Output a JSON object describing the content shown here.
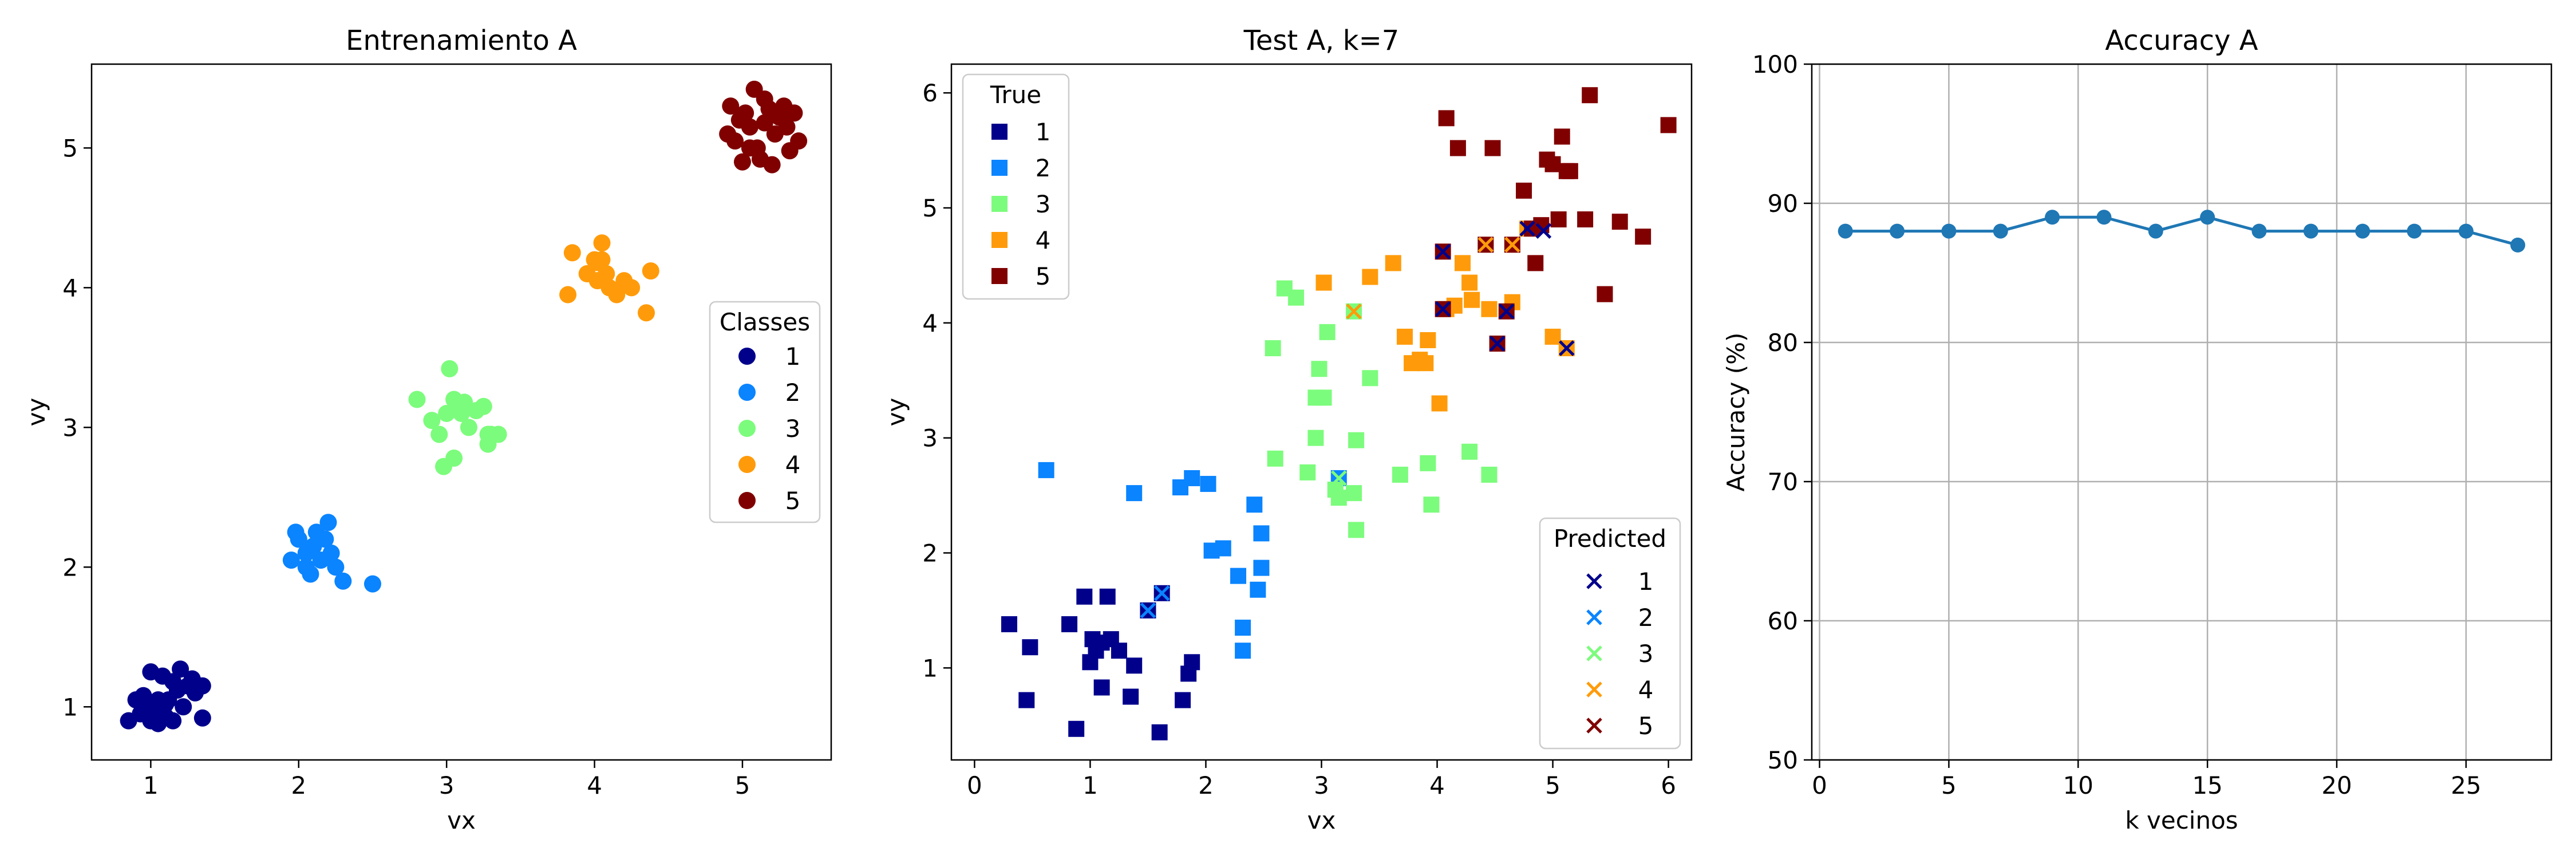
{
  "chart_data": [
    {
      "type": "scatter",
      "title": "Entrenamiento A",
      "xlabel": "vx",
      "ylabel": "vy",
      "xlim": [
        0.6,
        5.6
      ],
      "ylim": [
        0.62,
        5.6
      ],
      "xticks": [
        1,
        2,
        3,
        4,
        5
      ],
      "yticks": [
        1,
        2,
        3,
        4,
        5
      ],
      "grid": false,
      "legend": {
        "title": "Classes",
        "placement": "center-right",
        "entries": [
          "1",
          "2",
          "3",
          "4",
          "5"
        ]
      },
      "class_colors": [
        "#00008b",
        "#0a84ff",
        "#7cfc7c",
        "#ff9b0a",
        "#800000"
      ],
      "series": [
        {
          "name": "1",
          "points": [
            [
              0.85,
              0.9
            ],
            [
              0.9,
              1.05
            ],
            [
              0.95,
              1.08
            ],
            [
              0.98,
              1.0
            ],
            [
              1.0,
              1.25
            ],
            [
              1.02,
              0.95
            ],
            [
              1.05,
              1.05
            ],
            [
              1.08,
              1.22
            ],
            [
              1.1,
              0.93
            ],
            [
              1.12,
              1.05
            ],
            [
              1.15,
              1.18
            ],
            [
              1.18,
              1.12
            ],
            [
              1.2,
              1.27
            ],
            [
              1.22,
              1.0
            ],
            [
              1.25,
              1.15
            ],
            [
              1.28,
              1.2
            ],
            [
              1.3,
              1.1
            ],
            [
              1.35,
              0.92
            ],
            [
              1.35,
              1.15
            ],
            [
              1.15,
              0.9
            ],
            [
              0.93,
              0.95
            ],
            [
              1.0,
              0.9
            ],
            [
              1.05,
              0.88
            ],
            [
              1.1,
              1.02
            ]
          ]
        },
        {
          "name": "2",
          "points": [
            [
              1.95,
              2.05
            ],
            [
              1.98,
              2.25
            ],
            [
              2.0,
              2.2
            ],
            [
              2.05,
              2.0
            ],
            [
              2.08,
              1.95
            ],
            [
              2.1,
              2.15
            ],
            [
              2.12,
              2.25
            ],
            [
              2.15,
              2.05
            ],
            [
              2.18,
              2.2
            ],
            [
              2.2,
              2.32
            ],
            [
              2.22,
              2.1
            ],
            [
              2.25,
              2.0
            ],
            [
              2.3,
              1.9
            ],
            [
              2.5,
              1.88
            ],
            [
              2.05,
              2.1
            ],
            [
              2.0,
              2.2
            ]
          ]
        },
        {
          "name": "3",
          "points": [
            [
              2.8,
              3.2
            ],
            [
              2.9,
              3.05
            ],
            [
              2.95,
              2.95
            ],
            [
              2.98,
              2.72
            ],
            [
              3.0,
              3.1
            ],
            [
              3.02,
              3.42
            ],
            [
              3.05,
              2.78
            ],
            [
              3.05,
              3.2
            ],
            [
              3.08,
              3.12
            ],
            [
              3.1,
              3.1
            ],
            [
              3.12,
              3.18
            ],
            [
              3.15,
              3.0
            ],
            [
              3.2,
              3.12
            ],
            [
              3.25,
              3.15
            ],
            [
              3.28,
              2.88
            ],
            [
              3.3,
              2.95
            ],
            [
              3.35,
              2.95
            ],
            [
              3.28,
              2.95
            ]
          ]
        },
        {
          "name": "4",
          "points": [
            [
              3.82,
              3.95
            ],
            [
              3.85,
              4.25
            ],
            [
              3.95,
              4.1
            ],
            [
              4.0,
              4.2
            ],
            [
              4.02,
              4.05
            ],
            [
              4.05,
              4.32
            ],
            [
              4.05,
              4.2
            ],
            [
              4.08,
              4.1
            ],
            [
              4.1,
              4.0
            ],
            [
              4.15,
              3.95
            ],
            [
              4.2,
              4.05
            ],
            [
              4.25,
              4.0
            ],
            [
              4.35,
              3.82
            ],
            [
              4.38,
              4.12
            ],
            [
              4.02,
              4.18
            ]
          ]
        },
        {
          "name": "5",
          "points": [
            [
              4.9,
              5.1
            ],
            [
              4.92,
              5.3
            ],
            [
              4.95,
              5.05
            ],
            [
              4.98,
              5.2
            ],
            [
              5.0,
              4.9
            ],
            [
              5.02,
              5.25
            ],
            [
              5.05,
              5.15
            ],
            [
              5.08,
              5.42
            ],
            [
              5.1,
              5.0
            ],
            [
              5.12,
              4.92
            ],
            [
              5.15,
              5.18
            ],
            [
              5.18,
              5.28
            ],
            [
              5.2,
              4.88
            ],
            [
              5.22,
              5.1
            ],
            [
              5.25,
              5.22
            ],
            [
              5.28,
              5.3
            ],
            [
              5.3,
              5.15
            ],
            [
              5.32,
              4.98
            ],
            [
              5.35,
              5.25
            ],
            [
              5.38,
              5.05
            ],
            [
              5.05,
              5.0
            ],
            [
              5.15,
              5.35
            ]
          ]
        }
      ]
    },
    {
      "type": "scatter",
      "title": "Test A, k=7",
      "xlabel": "vx",
      "ylabel": "vy",
      "xlim": [
        -0.2,
        6.2
      ],
      "ylim": [
        0.2,
        6.25
      ],
      "xticks": [
        0,
        1,
        2,
        3,
        4,
        5,
        6
      ],
      "yticks": [
        1,
        2,
        3,
        4,
        5,
        6
      ],
      "grid": false,
      "legend_true": {
        "title": "True",
        "placement": "upper-left",
        "entries": [
          "1",
          "2",
          "3",
          "4",
          "5"
        ]
      },
      "legend_predicted": {
        "title": "Predicted",
        "placement": "lower-right",
        "entries": [
          "1",
          "2",
          "3",
          "4",
          "5"
        ]
      },
      "class_colors": [
        "#00008b",
        "#0a84ff",
        "#7cfc7c",
        "#ff9b0a",
        "#800000"
      ],
      "true_series": [
        {
          "name": "1",
          "points": [
            [
              0.3,
              1.38
            ],
            [
              0.45,
              0.72
            ],
            [
              0.48,
              1.18
            ],
            [
              0.82,
              1.38
            ],
            [
              0.88,
              0.47
            ],
            [
              0.95,
              1.62
            ],
            [
              1.0,
              1.05
            ],
            [
              1.02,
              1.25
            ],
            [
              1.05,
              1.15
            ],
            [
              1.1,
              0.83
            ],
            [
              1.1,
              1.22
            ],
            [
              1.15,
              1.62
            ],
            [
              1.18,
              1.25
            ],
            [
              1.25,
              1.15
            ],
            [
              1.35,
              0.75
            ],
            [
              1.38,
              1.02
            ],
            [
              1.5,
              1.5
            ],
            [
              1.6,
              0.44
            ],
            [
              1.62,
              1.65
            ],
            [
              1.8,
              0.72
            ],
            [
              1.85,
              0.95
            ],
            [
              1.88,
              1.05
            ]
          ]
        },
        {
          "name": "2",
          "points": [
            [
              0.62,
              2.72
            ],
            [
              1.38,
              2.52
            ],
            [
              1.78,
              2.57
            ],
            [
              1.88,
              2.65
            ],
            [
              2.02,
              2.6
            ],
            [
              2.05,
              2.02
            ],
            [
              2.15,
              2.04
            ],
            [
              2.28,
              1.8
            ],
            [
              2.32,
              1.15
            ],
            [
              2.32,
              1.35
            ],
            [
              2.42,
              2.42
            ],
            [
              2.45,
              1.68
            ],
            [
              2.48,
              1.87
            ],
            [
              2.48,
              2.17
            ],
            [
              3.15,
              2.65
            ]
          ]
        },
        {
          "name": "3",
          "points": [
            [
              2.58,
              3.78
            ],
            [
              2.6,
              2.82
            ],
            [
              2.68,
              4.3
            ],
            [
              2.78,
              4.22
            ],
            [
              2.88,
              2.7
            ],
            [
              2.95,
              3.0
            ],
            [
              2.95,
              3.35
            ],
            [
              2.98,
              3.6
            ],
            [
              3.02,
              3.35
            ],
            [
              3.05,
              3.92
            ],
            [
              3.12,
              2.55
            ],
            [
              3.15,
              2.48
            ],
            [
              3.28,
              2.52
            ],
            [
              3.3,
              2.98
            ],
            [
              3.3,
              2.2
            ],
            [
              3.68,
              2.68
            ],
            [
              3.92,
              2.78
            ],
            [
              3.95,
              2.42
            ],
            [
              4.28,
              2.88
            ],
            [
              4.45,
              2.68
            ],
            [
              3.42,
              3.52
            ],
            [
              3.28,
              4.1
            ]
          ]
        },
        {
          "name": "4",
          "points": [
            [
              3.02,
              4.35
            ],
            [
              3.42,
              4.4
            ],
            [
              3.62,
              4.52
            ],
            [
              3.72,
              3.88
            ],
            [
              3.78,
              3.65
            ],
            [
              3.85,
              3.68
            ],
            [
              3.9,
              3.65
            ],
            [
              3.92,
              3.85
            ],
            [
              4.02,
              3.3
            ],
            [
              4.08,
              4.12
            ],
            [
              4.15,
              4.15
            ],
            [
              4.22,
              4.52
            ],
            [
              4.28,
              4.35
            ],
            [
              4.3,
              4.2
            ],
            [
              4.45,
              4.12
            ],
            [
              4.65,
              4.18
            ],
            [
              4.78,
              4.82
            ],
            [
              5.0,
              3.88
            ],
            [
              5.12,
              3.78
            ]
          ]
        },
        {
          "name": "5",
          "points": [
            [
              4.08,
              5.78
            ],
            [
              4.18,
              5.52
            ],
            [
              4.48,
              5.52
            ],
            [
              4.52,
              3.82
            ],
            [
              4.6,
              4.1
            ],
            [
              4.65,
              4.68
            ],
            [
              4.75,
              5.15
            ],
            [
              4.82,
              4.82
            ],
            [
              4.85,
              4.52
            ],
            [
              4.9,
              4.85
            ],
            [
              4.95,
              5.42
            ],
            [
              5.0,
              5.38
            ],
            [
              5.05,
              4.9
            ],
            [
              5.08,
              5.62
            ],
            [
              5.12,
              5.32
            ],
            [
              5.15,
              5.32
            ],
            [
              5.28,
              4.9
            ],
            [
              5.32,
              5.98
            ],
            [
              5.45,
              4.25
            ],
            [
              5.58,
              4.88
            ],
            [
              5.78,
              4.75
            ],
            [
              6.0,
              5.72
            ],
            [
              4.05,
              4.62
            ],
            [
              4.42,
              4.68
            ],
            [
              4.05,
              4.12
            ]
          ]
        }
      ],
      "predicted_series": [
        {
          "name": "1",
          "points": [
            [
              4.05,
              4.62
            ],
            [
              4.42,
              4.68
            ],
            [
              4.52,
              3.82
            ],
            [
              4.6,
              4.1
            ],
            [
              4.78,
              4.82
            ],
            [
              4.92,
              4.8
            ],
            [
              5.12,
              3.78
            ],
            [
              4.05,
              4.12
            ]
          ]
        },
        {
          "name": "2",
          "points": [
            [
              1.5,
              1.5
            ],
            [
              1.62,
              1.65
            ]
          ]
        },
        {
          "name": "3",
          "points": [
            [
              3.15,
              2.65
            ]
          ]
        },
        {
          "name": "4",
          "points": [
            [
              3.28,
              4.1
            ],
            [
              4.65,
              4.68
            ],
            [
              4.42,
              4.68
            ]
          ]
        },
        {
          "name": "5",
          "points": []
        }
      ]
    },
    {
      "type": "line",
      "title": "Accuracy A",
      "xlabel": "k vecinos",
      "ylabel": "Accuracy (%)",
      "xlim": [
        -0.3,
        28.3
      ],
      "ylim": [
        50,
        100
      ],
      "xticks": [
        0,
        5,
        10,
        15,
        20,
        25
      ],
      "yticks": [
        50,
        60,
        70,
        80,
        90,
        100
      ],
      "grid": true,
      "series": [
        {
          "x": [
            1,
            3,
            5,
            7,
            9,
            11,
            13,
            15,
            17,
            19,
            21,
            23,
            25,
            27
          ],
          "values": [
            88,
            88,
            88,
            88,
            89,
            89,
            88,
            89,
            88,
            88,
            88,
            88,
            88,
            87
          ],
          "color": "#1f77b4"
        }
      ]
    }
  ]
}
